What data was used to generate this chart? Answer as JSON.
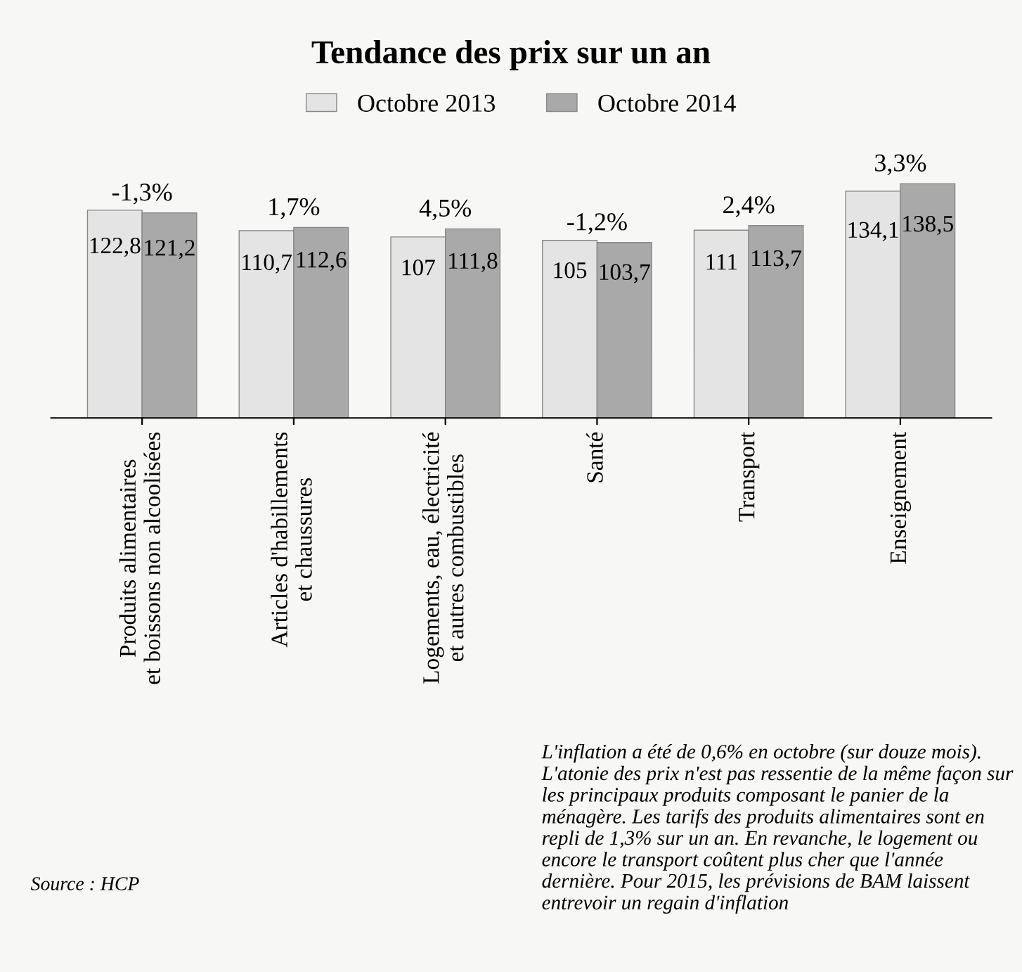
{
  "chart_data": {
    "type": "bar",
    "title": "Tendance des prix sur un an",
    "categories": [
      "Produits alimentaires\net boissons non alcoolisées",
      "Articles d'habillements\net chaussures",
      "Logements, eau, électricité\net autres combustibles",
      "Santé",
      "Transport",
      "Enseignement"
    ],
    "series": [
      {
        "name": "Octobre 2013",
        "color": "#e4e4e4",
        "values": [
          122.8,
          110.7,
          107,
          105,
          111,
          134.1
        ],
        "value_labels": [
          "122,8",
          "110,7",
          "107",
          "105",
          "111",
          "134,1"
        ]
      },
      {
        "name": "Octobre 2014",
        "color": "#a9a9a9",
        "values": [
          121.2,
          112.6,
          111.8,
          103.7,
          113.7,
          138.5
        ],
        "value_labels": [
          "121,2",
          "112,6",
          "111,8",
          "103,7",
          "113,7",
          "138,5"
        ]
      }
    ],
    "legend": "top",
    "grid": false,
    "annotations": [
      {
        "text": "-1,3%",
        "x": "Produits alimentaires\net boissons non alcoolisées",
        "y": 121.2
      },
      {
        "text": "1,7%",
        "x": "Articles d'habillements\net chaussures",
        "y": 112.6
      },
      {
        "text": "4,5%",
        "x": "Logements, eau, électricité\net autres combustibles",
        "y": 111.8
      },
      {
        "text": "-1,2%",
        "x": "Santé",
        "y": 103.7
      },
      {
        "text": "2,4%",
        "x": "Transport",
        "y": 113.7
      },
      {
        "text": "3,3%",
        "x": "Enseignement",
        "y": 138.5
      },
      "L'inflation a été de 0,6% en octobre (sur douze mois). L'atonie des prix n'est pas ressentie de la même façon sur les principaux produits composant le panier de la ménagère. Les tarifs des produits alimentaires sont en repli de 1,3% sur un an. En revanche, le logement ou encore le transport coûtent plus cher que l'année dernière. Pour 2015, les prévisions de BAM laissent entrevoir un regain d'inflation",
      "Source : HCP"
    ]
  }
}
